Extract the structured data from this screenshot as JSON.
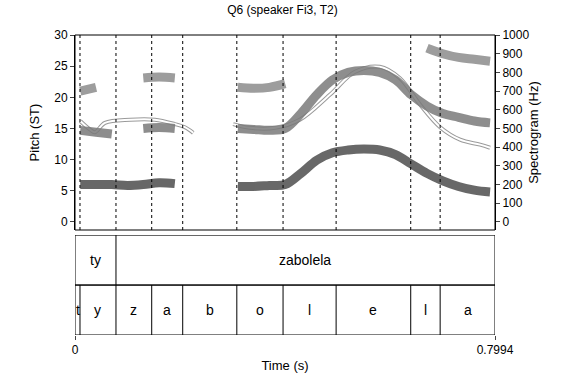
{
  "chart_data": {
    "type": "line",
    "title": "Q6 (speaker Fi3, T2)",
    "xlabel": "Time (s)",
    "ylabel": "Pitch (ST)",
    "y2label": "Spectrogram (Hz)",
    "xlim": [
      0,
      0.7994
    ],
    "xticks": [
      0,
      0.7994
    ],
    "ylim": [
      -1.3,
      30
    ],
    "yticks": [
      0,
      5,
      10,
      15,
      20,
      25,
      30
    ],
    "y2lim": [
      -43,
      1000
    ],
    "y2ticks": [
      0,
      100,
      200,
      300,
      400,
      500,
      600,
      700,
      800,
      900,
      1000
    ],
    "grid": false,
    "series": [
      {
        "type": "line",
        "color": "#ffffff",
        "x": [
          0.01,
          0.029,
          0.038,
          0.057,
          0.105,
          0.152,
          0.19,
          0.209,
          0.225,
          0.26,
          0.301,
          0.333,
          0.381,
          0.428,
          0.485,
          0.533,
          0.58,
          0.618,
          0.657,
          0.695,
          0.733,
          0.771,
          0.79
        ],
        "values": [
          16.2,
          14.8,
          14.4,
          15.9,
          16.4,
          16.4,
          15.7,
          15.2,
          14.3,
          null,
          15.7,
          15.1,
          15.1,
          16.4,
          20.4,
          24.1,
          24.9,
          23.1,
          18.8,
          15.2,
          13.2,
          12.4,
          11.9
        ]
      },
      {
        "type": "line",
        "axis": "y2",
        "color": "#4d4d4d",
        "x": [
          0.01,
          0.04,
          0.07,
          0.1,
          0.13,
          0.16,
          0.19,
          0.22,
          0.25,
          0.28,
          0.31,
          0.34,
          0.37,
          0.4,
          0.43,
          0.46,
          0.49,
          0.52,
          0.55,
          0.58,
          0.61,
          0.64,
          0.67,
          0.7,
          0.73,
          0.76,
          0.79
        ],
        "values": [
          200,
          200,
          200,
          195,
          200,
          210,
          205,
          null,
          null,
          null,
          190,
          190,
          195,
          200,
          260,
          330,
          370,
          385,
          390,
          385,
          360,
          310,
          260,
          220,
          190,
          170,
          160
        ]
      },
      {
        "type": "line",
        "axis": "y2",
        "color": "#7a7a7a",
        "x": [
          0.01,
          0.04,
          0.07,
          0.1,
          0.13,
          0.16,
          0.19,
          0.22,
          0.25,
          0.28,
          0.31,
          0.34,
          0.37,
          0.4,
          0.43,
          0.46,
          0.49,
          0.52,
          0.55,
          0.58,
          0.61,
          0.64,
          0.67,
          0.7,
          0.73,
          0.76,
          0.79
        ],
        "values": [
          490,
          480,
          470,
          null,
          500,
          505,
          500,
          null,
          null,
          null,
          500,
          495,
          490,
          500,
          580,
          680,
          760,
          800,
          810,
          800,
          760,
          680,
          620,
          580,
          560,
          540,
          530
        ]
      },
      {
        "type": "line",
        "axis": "y2",
        "color": "#8c8c8c",
        "x": [
          0.01,
          0.04,
          0.07,
          0.1,
          0.13,
          0.16,
          0.19,
          0.22,
          0.25,
          0.28,
          0.31,
          0.34,
          0.37,
          0.4,
          0.43,
          0.46,
          0.49,
          0.52,
          0.55,
          0.58,
          0.61,
          0.64,
          0.67,
          0.7,
          0.73,
          0.76,
          0.79
        ],
        "values": [
          700,
          720,
          null,
          null,
          770,
          775,
          770,
          null,
          null,
          null,
          720,
          715,
          720,
          740,
          null,
          null,
          null,
          null,
          null,
          null,
          null,
          null,
          930,
          900,
          880,
          870,
          860
        ]
      }
    ],
    "tiers": [
      {
        "boundaries": [
          0.078
        ],
        "labels": [
          "ty",
          "zabolela"
        ]
      },
      {
        "boundaries": [
          0.0095,
          0.078,
          0.146,
          0.205,
          0.308,
          0.396,
          0.497,
          0.639,
          0.695
        ],
        "labels": [
          "t",
          "y",
          "z",
          "a",
          "b",
          "o",
          "l",
          "e",
          "l",
          "a"
        ]
      }
    ]
  }
}
